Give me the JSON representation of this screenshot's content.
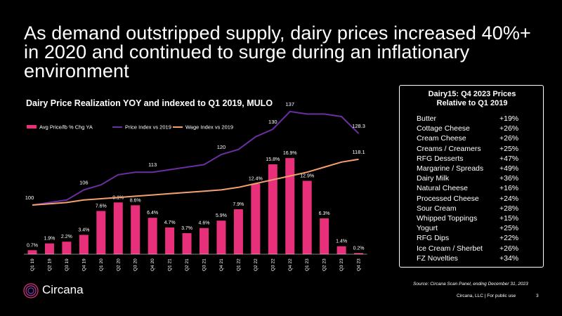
{
  "headline": "As demand outstripped supply, dairy prices increased 40%+ in 2020 and continued to surge during an inflationary environment",
  "chart_data": {
    "type": "bar",
    "title": "Dairy Price Realization YOY and indexed to Q1 2019, MULO",
    "categories": [
      "Q1 19",
      "Q2 19",
      "Q3 19",
      "Q4 19",
      "Q1 20",
      "Q2 20",
      "Q3 20",
      "Q4 20",
      "Q1 21",
      "Q2 21",
      "Q3 21",
      "Q4 21",
      "Q1 22",
      "Q2 22",
      "Q3 22",
      "Q4 22",
      "Q1 23",
      "Q2 23",
      "Q3 23",
      "Q4 23"
    ],
    "bar_series": {
      "name": "Avg Price/lb % Chg YA",
      "color": "#e8307a",
      "values": [
        0.7,
        1.9,
        2.2,
        3.4,
        7.6,
        9.1,
        8.6,
        6.4,
        4.7,
        3.7,
        4.6,
        5.9,
        7.9,
        12.4,
        15.8,
        16.9,
        12.9,
        6.3,
        1.4,
        0.2
      ],
      "labels": [
        "0.7%",
        "1.9%",
        "2.2%",
        "3.4%",
        "7.6%",
        "9.1%",
        "8.6%",
        "6.4%",
        "4.7%",
        "3.7%",
        "4.6%",
        "5.9%",
        "7.9%",
        "12.4%",
        "15.8%",
        "16.9%",
        "12.9%",
        "6.3%",
        "1.4%",
        "0.2%"
      ]
    },
    "line_series": [
      {
        "name": "Price Index vs 2019",
        "color": "#6a2fa0",
        "values": [
          100,
          101,
          102,
          106,
          108,
          112,
          113,
          113,
          114,
          115,
          116,
          120,
          122,
          127,
          130,
          137,
          136,
          136,
          135,
          128.3
        ],
        "labels": [
          {
            "index": 0,
            "text": "100"
          },
          {
            "index": 3,
            "text": "106"
          },
          {
            "index": 7,
            "text": "113"
          },
          {
            "index": 11,
            "text": "120"
          },
          {
            "index": 14,
            "text": "130"
          },
          {
            "index": 15,
            "text": "137"
          },
          {
            "index": 19,
            "text": "128.3"
          }
        ]
      },
      {
        "name": "Wage Index vs 2019",
        "color": "#f4a070",
        "values": [
          100,
          100.5,
          101,
          102,
          102.5,
          103,
          103.5,
          104,
          104.5,
          105,
          105.5,
          106,
          107,
          108.5,
          110,
          111.5,
          113,
          115,
          117,
          118.1
        ],
        "labels": [
          {
            "index": 19,
            "text": "118.1"
          }
        ]
      }
    ]
  },
  "panel": {
    "title_line1": "Dairy15: Q4 2023 Prices",
    "title_line2": "Relative to Q1 2019",
    "rows": [
      {
        "name": "Butter",
        "value": "+19%"
      },
      {
        "name": "Cottage Cheese",
        "value": "+26%"
      },
      {
        "name": "Cream Cheese",
        "value": "+26%"
      },
      {
        "name": "Creams / Creamers",
        "value": "+25%"
      },
      {
        "name": "RFG Desserts",
        "value": "+47%"
      },
      {
        "name": "Margarine / Spreads",
        "value": "+49%"
      },
      {
        "name": "Dairy Milk",
        "value": "+36%"
      },
      {
        "name": "Natural Cheese",
        "value": "+16%"
      },
      {
        "name": "Processed Cheese",
        "value": "+24%"
      },
      {
        "name": "Sour Cream",
        "value": "+28%"
      },
      {
        "name": "Whipped Toppings",
        "value": "+15%"
      },
      {
        "name": "Yogurt",
        "value": "+25%"
      },
      {
        "name": "RFG Dips",
        "value": "+22%"
      },
      {
        "name": "Ice Cream / Sherbet",
        "value": "+26%"
      },
      {
        "name": "FZ Novelties",
        "value": "+34%"
      }
    ]
  },
  "source": "Source: Circana Scan Panel, ending December 31, 2023",
  "footer_note": "Circana, LLC | For public use",
  "page_number": "3",
  "logo_text": "Circana"
}
